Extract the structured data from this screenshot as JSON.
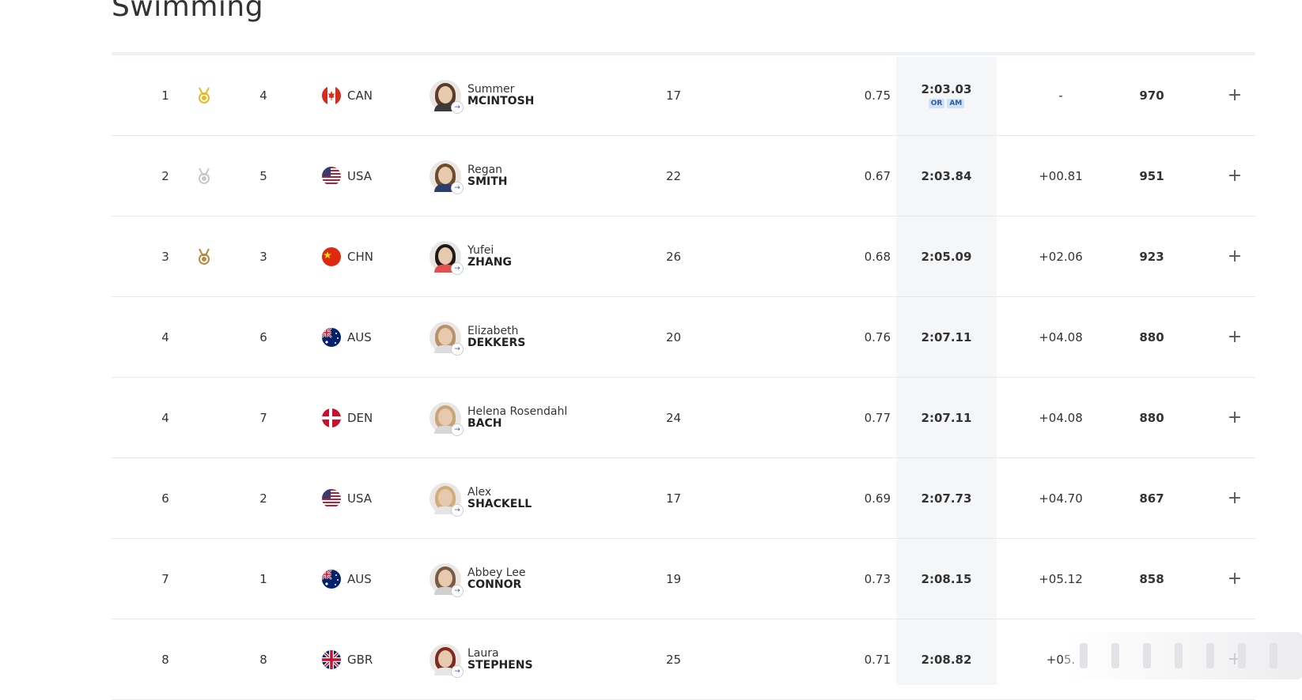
{
  "page": {
    "title": "Swimming"
  },
  "rows": [
    {
      "rank": "1",
      "medal": "gold",
      "lane": "4",
      "noc": "CAN",
      "first": "Summer",
      "last": "MCINTOSH",
      "age": "17",
      "rt": "0.75",
      "time": "2:03.03",
      "records": [
        "OR",
        "AM"
      ],
      "behind": "-",
      "pts": "970"
    },
    {
      "rank": "2",
      "medal": "silver",
      "lane": "5",
      "noc": "USA",
      "first": "Regan",
      "last": "SMITH",
      "age": "22",
      "rt": "0.67",
      "time": "2:03.84",
      "records": [],
      "behind": "+00.81",
      "pts": "951"
    },
    {
      "rank": "3",
      "medal": "bronze",
      "lane": "3",
      "noc": "CHN",
      "first": "Yufei",
      "last": "ZHANG",
      "age": "26",
      "rt": "0.68",
      "time": "2:05.09",
      "records": [],
      "behind": "+02.06",
      "pts": "923"
    },
    {
      "rank": "4",
      "medal": "",
      "lane": "6",
      "noc": "AUS",
      "first": "Elizabeth",
      "last": "DEKKERS",
      "age": "20",
      "rt": "0.76",
      "time": "2:07.11",
      "records": [],
      "behind": "+04.08",
      "pts": "880"
    },
    {
      "rank": "4",
      "medal": "",
      "lane": "7",
      "noc": "DEN",
      "first": "Helena Rosendahl",
      "last": "BACH",
      "age": "24",
      "rt": "0.77",
      "time": "2:07.11",
      "records": [],
      "behind": "+04.08",
      "pts": "880"
    },
    {
      "rank": "6",
      "medal": "",
      "lane": "2",
      "noc": "USA",
      "first": "Alex",
      "last": "SHACKELL",
      "age": "17",
      "rt": "0.69",
      "time": "2:07.73",
      "records": [],
      "behind": "+04.70",
      "pts": "867"
    },
    {
      "rank": "7",
      "medal": "",
      "lane": "1",
      "noc": "AUS",
      "first": "Abbey Lee",
      "last": "CONNOR",
      "age": "19",
      "rt": "0.73",
      "time": "2:08.15",
      "records": [],
      "behind": "+05.12",
      "pts": "858"
    },
    {
      "rank": "8",
      "medal": "",
      "lane": "8",
      "noc": "GBR",
      "first": "Laura",
      "last": "STEPHENS",
      "age": "25",
      "rt": "0.71",
      "time": "2:08.82",
      "records": [],
      "behind": "+05.",
      "pts": ""
    }
  ],
  "colors": {
    "gold": "#e9b824",
    "silver": "#c8c8c8",
    "bronze": "#b9893f",
    "record_badge_bg": "#cfe2f7",
    "record_badge_text": "#2b5d9c"
  },
  "avatars": [
    {
      "hair": "#5a3b28",
      "top": "#3a3a3a"
    },
    {
      "hair": "#6e4a2c",
      "top": "#2c3e6b"
    },
    {
      "hair": "#1e1a18",
      "top": "#e05050"
    },
    {
      "hair": "#b7916a",
      "top": "#dcdcdc"
    },
    {
      "hair": "#c7a47a",
      "top": "#d8d8d8"
    },
    {
      "hair": "#d1ad7b",
      "top": "#e4e4e4"
    },
    {
      "hair": "#7a5a44",
      "top": "#cfcfcf"
    },
    {
      "hair": "#7b2b20",
      "top": "#e6e6e6"
    }
  ]
}
